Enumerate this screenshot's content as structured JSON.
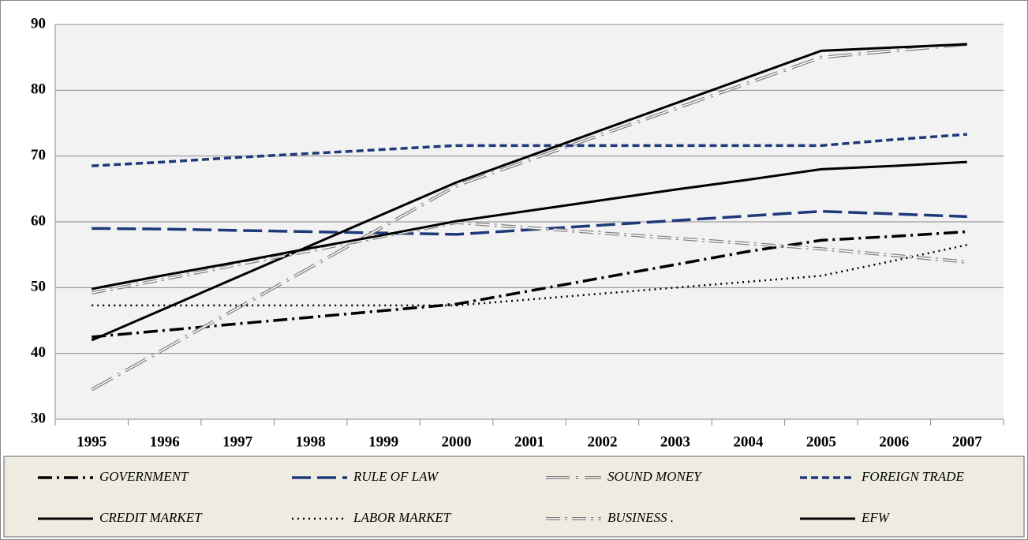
{
  "chart_data": {
    "type": "line",
    "categories": [
      "1995",
      "1996",
      "1997",
      "1998",
      "1999",
      "2000",
      "2001",
      "2002",
      "2003",
      "2004",
      "2005",
      "2006",
      "2007"
    ],
    "ylim": [
      30,
      90
    ],
    "yticks": [
      30,
      40,
      50,
      60,
      70,
      80,
      90
    ],
    "grid": true,
    "legend": "bottom",
    "series": [
      {
        "name": "GOVERNMENT",
        "color": "#000000",
        "values": [
          42.5,
          43.5,
          44.5,
          45.5,
          46.5,
          47.5,
          49.5,
          51.5,
          53.5,
          55.5,
          57.2,
          57.8,
          58.5
        ]
      },
      {
        "name": "RULE OF LAW",
        "color": "#1f3a7a",
        "values": [
          59,
          58.9,
          58.7,
          58.5,
          58.3,
          58.1,
          58.8,
          59.5,
          60.2,
          60.9,
          61.6,
          61.2,
          60.8
        ]
      },
      {
        "name": "SOUND MONEY",
        "color": "#7f7f7f",
        "values": [
          34.5,
          40.7,
          46.9,
          53.1,
          59.3,
          65.5,
          69.4,
          73.3,
          77.2,
          81.1,
          85,
          86,
          87
        ]
      },
      {
        "name": "FOREIGN TRADE",
        "color": "#1f3a7a",
        "values": [
          68.5,
          69.1,
          69.8,
          70.4,
          71.0,
          71.6,
          71.6,
          71.6,
          71.6,
          71.6,
          71.6,
          72.5,
          73.3
        ]
      },
      {
        "name": "CREDIT MARKET",
        "color": "#000000",
        "values": [
          42,
          46.8,
          51.6,
          56.4,
          61.2,
          66,
          70,
          74,
          78,
          82,
          86,
          86.5,
          87
        ]
      },
      {
        "name": "LABOR MARKET",
        "color": "#000000",
        "values": [
          47.3,
          47.3,
          47.3,
          47.3,
          47.3,
          47.3,
          48.2,
          49.1,
          50.0,
          50.9,
          51.8,
          54.1,
          56.5
        ]
      },
      {
        "name": "BUSINESS .",
        "color": "#7f7f7f",
        "values": [
          49.2,
          51.3,
          53.5,
          55.6,
          57.8,
          59.9,
          59.1,
          58.3,
          57.5,
          56.7,
          55.9,
          54.9,
          53.9
        ]
      },
      {
        "name": "EFW",
        "color": "#000000",
        "values": [
          49.8,
          51.9,
          53.9,
          56.0,
          58.0,
          60.1,
          61.7,
          63.3,
          64.9,
          66.4,
          68.0,
          68.5,
          69.1
        ]
      }
    ]
  }
}
